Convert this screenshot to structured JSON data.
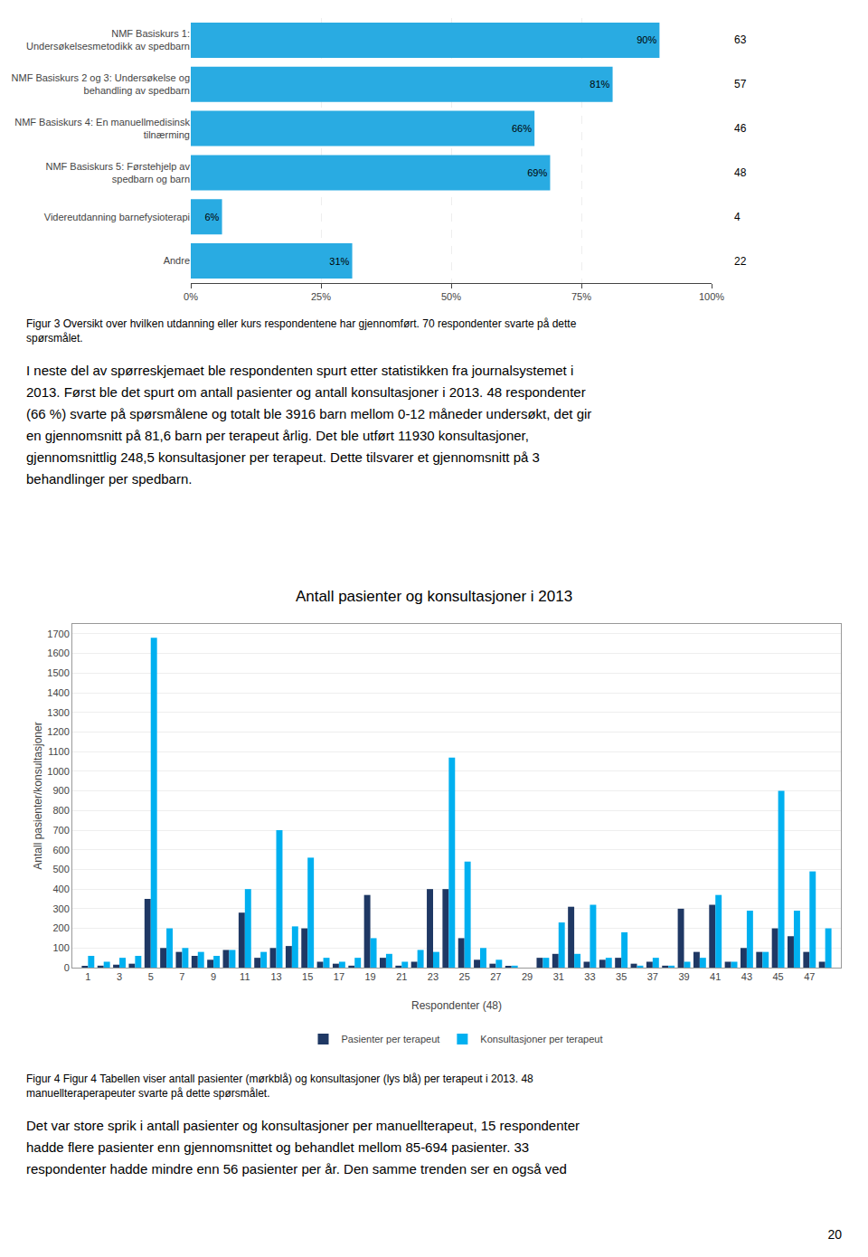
{
  "chart_data": [
    {
      "type": "bar",
      "orientation": "horizontal",
      "categories": [
        "NMF Basiskurs 1:\nUndersøkelsesmetodikk av spedbarn",
        "NMF Basiskurs 2 og 3: Undersøkelse og\nbehandling av spedbarn",
        "NMF Basiskurs 4: En manuellmedisinsk\ntilnærming",
        "NMF Basiskurs 5: Førstehjelp av\nspedbarn og barn",
        "Videreutdanning barnefysioterapi",
        "Andre"
      ],
      "values": [
        90,
        81,
        66,
        69,
        6,
        31
      ],
      "value_labels": [
        "90%",
        "81%",
        "66%",
        "69%",
        "6%",
        "31%"
      ],
      "data_labels": true,
      "counts": [
        63,
        57,
        46,
        48,
        4,
        22
      ],
      "color": "#29abe2",
      "xlim": [
        0,
        100
      ],
      "xticks": [
        {
          "value": 0,
          "label": "0%"
        },
        {
          "value": 25,
          "label": "25%"
        },
        {
          "value": 50,
          "label": "50%"
        },
        {
          "value": 75,
          "label": "75%"
        },
        {
          "value": 100,
          "label": "100%"
        }
      ],
      "grid": true,
      "caption": [
        "Figur 3 Oversikt over hvilken utdanning eller kurs respondentene har gjennomført. 70 respondenter svarte på dette",
        "spørsmålet."
      ],
      "text": [
        "I neste del av spørreskjemaet ble respondenten spurt etter statistikken fra journalsystemet i",
        "2013. Først ble det spurt om antall pasienter og antall konsultasjoner i 2013. 48 respondenter",
        "(66 %) svarte på spørsmålene og totalt ble 3916 barn mellom 0-12 måneder undersøkt, det gir",
        "en gjennomsnitt på 81,6 barn per terapeut årlig. Det ble utført 11930 konsultasjoner,",
        "gjennomsnittlig 248,5 konsultasjoner per terapeut. Dette tilsvarer et gjennomsnitt på 3",
        "behandlinger per spedbarn."
      ]
    },
    {
      "type": "bar",
      "title": "Antall pasienter og konsultasjoner i 2013",
      "x_label": "Respondenter (48)",
      "y_label": "Antall pasienter/konsultasjoner",
      "x": [
        1,
        2,
        3,
        4,
        5,
        6,
        7,
        8,
        9,
        10,
        11,
        12,
        13,
        14,
        15,
        16,
        17,
        18,
        19,
        20,
        21,
        22,
        23,
        24,
        25,
        26,
        27,
        28,
        29,
        30,
        31,
        32,
        33,
        34,
        35,
        36,
        37,
        38,
        39,
        40,
        41,
        42,
        43,
        44,
        45,
        46,
        47,
        48
      ],
      "series": [
        {
          "name": "Pasienter per terapeut",
          "color": "#1f3864",
          "values": [
            5,
            10,
            15,
            20,
            350,
            100,
            80,
            60,
            40,
            90,
            280,
            50,
            100,
            110,
            200,
            30,
            20,
            10,
            370,
            50,
            10,
            30,
            400,
            400,
            150,
            40,
            20,
            5,
            0,
            50,
            70,
            310,
            30,
            40,
            50,
            20,
            30,
            10,
            300,
            80,
            320,
            30,
            100,
            80,
            200,
            160,
            80,
            30
          ]
        },
        {
          "name": "Konsultasjoner per terapeut",
          "color": "#00b0f0",
          "values": [
            60,
            30,
            50,
            60,
            1680,
            200,
            100,
            80,
            60,
            90,
            400,
            80,
            700,
            210,
            560,
            50,
            30,
            50,
            150,
            70,
            30,
            90,
            80,
            1070,
            540,
            100,
            40,
            10,
            0,
            50,
            230,
            70,
            320,
            50,
            180,
            10,
            50,
            10,
            30,
            50,
            370,
            30,
            290,
            80,
            900,
            290,
            490,
            200
          ]
        }
      ],
      "xlim": [
        0,
        49
      ],
      "xticks": [
        1,
        3,
        5,
        7,
        9,
        11,
        13,
        15,
        17,
        19,
        21,
        23,
        25,
        27,
        29,
        31,
        33,
        35,
        37,
        39,
        41,
        43,
        45,
        47
      ],
      "ylim": [
        0,
        1750
      ],
      "yticks": [
        0,
        100,
        200,
        300,
        400,
        500,
        600,
        700,
        800,
        900,
        1000,
        1100,
        1200,
        1300,
        1400,
        1500,
        1600,
        1700
      ],
      "grid": true,
      "legend": "bottom",
      "caption": [
        "Figur 4 Figur 4 Tabellen viser antall pasienter (mørkblå) og konsultasjoner (lys blå) per terapeut i 2013. 48",
        "manuellteraperapeuter svarte på dette spørsmålet."
      ],
      "text": [
        "Det var store sprik i antall pasienter og konsultasjoner per manuellterapeut, 15 respondenter",
        "hadde flere pasienter enn gjennomsnittet og behandlet mellom 85-694 pasienter. 33",
        "respondenter hadde mindre enn 56 pasienter per år. Den samme trenden ser en også ved"
      ],
      "page_number": "20"
    }
  ]
}
